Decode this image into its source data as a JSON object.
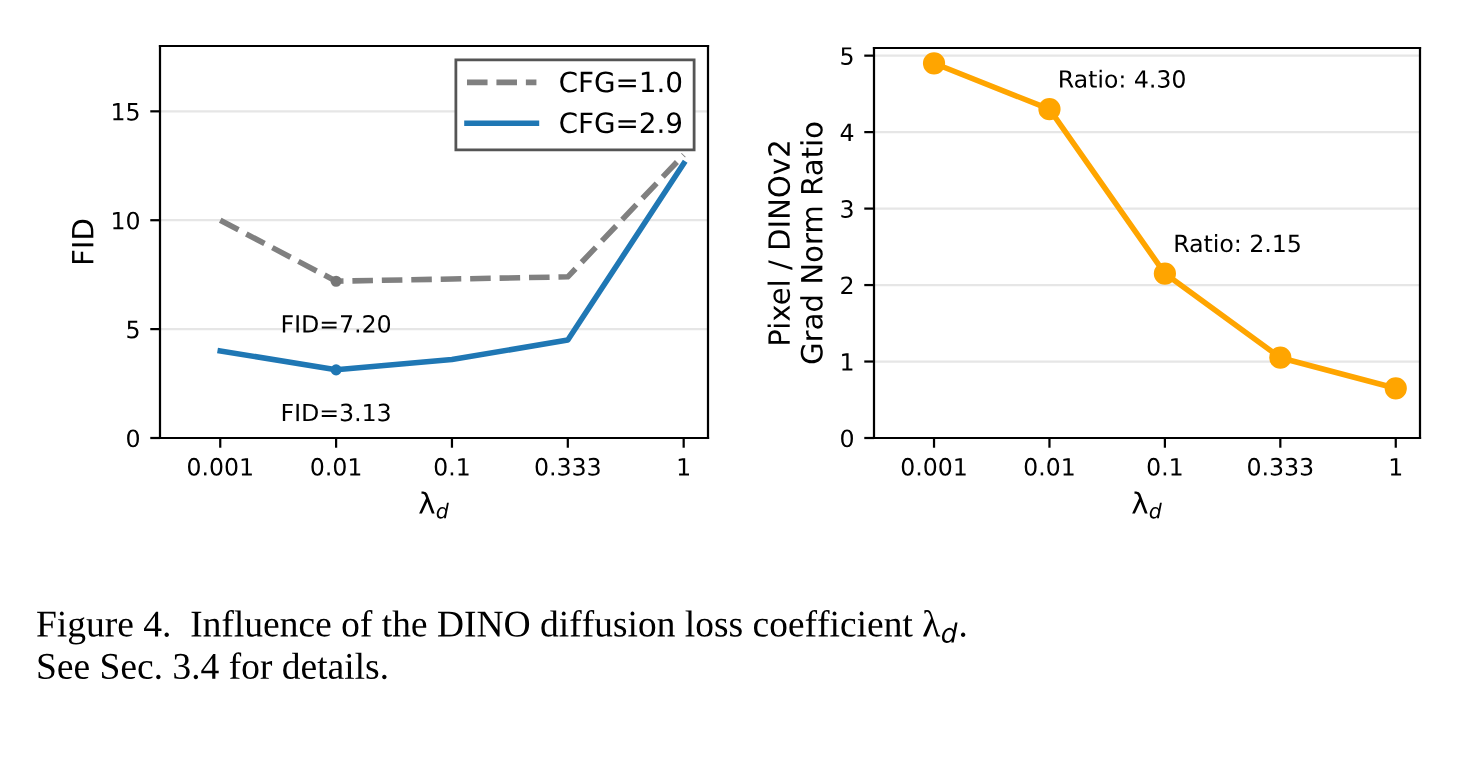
{
  "chart_data": [
    {
      "type": "line",
      "xlabel": "λ$_{d}$",
      "ylabel": "FID",
      "categories": [
        "0.001",
        "0.01",
        "0.1",
        "0.333",
        "1"
      ],
      "series": [
        {
          "name": "CFG=1.0",
          "color": "#808080",
          "line_style": "dashed",
          "values": [
            10.0,
            7.2,
            7.3,
            7.4,
            13.0
          ]
        },
        {
          "name": "CFG=2.9",
          "color": "#1f77b4",
          "line_style": "solid",
          "values": [
            4.0,
            3.13,
            3.6,
            4.5,
            12.6
          ]
        }
      ],
      "ylim": [
        0,
        18
      ],
      "yticks": [
        0,
        5,
        10,
        15
      ],
      "grid": "y",
      "legend": "top right",
      "marker": "none",
      "annotations": [
        {
          "text": "FID=7.20",
          "x": "0.01",
          "y": 7.2
        },
        {
          "text": "FID=3.13",
          "x": "0.01",
          "y": 3.13
        },
        "Figure 4.  Influence of the DINO diffusion loss coefficient λ$_{d}$.\nSee Sec. 3.4 for details."
      ]
    },
    {
      "type": "line",
      "xlabel": "λ$_{d}$",
      "ylabel": "Pixel / DINOv2\nGrad Norm Ratio",
      "categories": [
        "0.001",
        "0.01",
        "0.1",
        "0.333",
        "1"
      ],
      "series": [
        {
          "color": "#ffa500",
          "values": [
            4.9,
            4.3,
            2.15,
            1.05,
            0.65
          ]
        }
      ],
      "ylim": [
        0,
        5.1
      ],
      "yticks": [
        0,
        1,
        2,
        3,
        4,
        5
      ],
      "grid": "y",
      "legend": false,
      "marker": "circle",
      "annotations": [
        {
          "text": "Ratio: 4.30",
          "x": "0.01",
          "y": 4.3
        },
        {
          "text": "Ratio: 2.15",
          "x": "0.1",
          "y": 2.15
        }
      ]
    }
  ]
}
